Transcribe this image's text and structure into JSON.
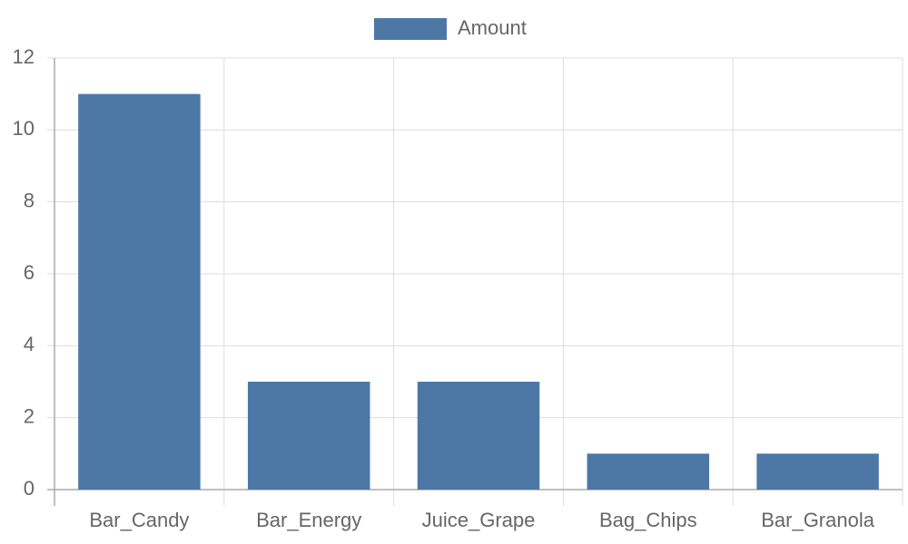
{
  "chart_data": {
    "type": "bar",
    "categories": [
      "Bar_Candy",
      "Bar_Energy",
      "Juice_Grape",
      "Bag_Chips",
      "Bar_Granola"
    ],
    "series": [
      {
        "name": "Amount",
        "color": "#4d78a6",
        "values": [
          11,
          3,
          3,
          1,
          1
        ]
      }
    ],
    "ylim": [
      0,
      12
    ],
    "yticks": [
      0,
      2,
      4,
      6,
      8,
      10,
      12
    ],
    "grid": true,
    "legend": "top"
  }
}
